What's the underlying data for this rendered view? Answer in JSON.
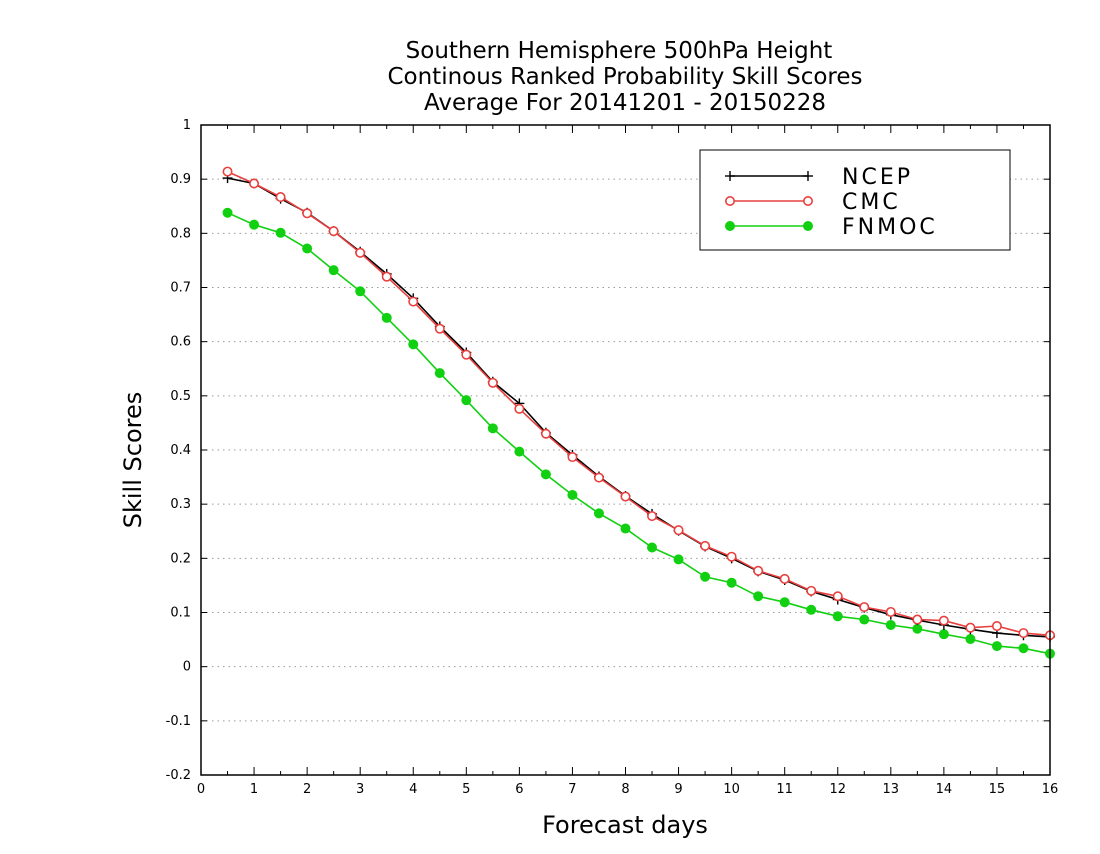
{
  "chart_data": {
    "type": "line",
    "title": [
      "Southern Hemisphere 500hPa Height",
      "Continous Ranked Probability Skill Scores",
      "Average For 20141201 - 20150228"
    ],
    "xlabel": "Forecast days",
    "ylabel": "Skill Scores",
    "xlim": [
      0,
      16
    ],
    "ylim": [
      -0.2,
      1
    ],
    "xticks": [
      0,
      1,
      2,
      3,
      4,
      5,
      6,
      7,
      8,
      9,
      10,
      11,
      12,
      13,
      14,
      15,
      16
    ],
    "xtick_labels": [
      "0",
      "1",
      "2",
      "3",
      "4",
      "5",
      "6",
      "7",
      "8",
      "9",
      "10",
      "11",
      "12",
      "13",
      "14",
      "15",
      "16"
    ],
    "yticks": [
      -0.2,
      -0.1,
      0,
      0.1,
      0.2,
      0.3,
      0.4,
      0.5,
      0.6,
      0.7,
      0.8,
      0.9,
      1
    ],
    "ytick_labels": [
      "-0.2",
      "-0.1",
      "0",
      "0.1",
      "0.2",
      "0.3",
      "0.4",
      "0.5",
      "0.6",
      "0.7",
      "0.8",
      "0.9",
      "1"
    ],
    "grid": "horizontal dotted",
    "legend_position": "top-right",
    "x": [
      0.5,
      1,
      1.5,
      2,
      2.5,
      3,
      3.5,
      4,
      4.5,
      5,
      5.5,
      6,
      6.5,
      7,
      7.5,
      8,
      8.5,
      9,
      9.5,
      10,
      10.5,
      11,
      11.5,
      12,
      12.5,
      13,
      13.5,
      14,
      14.5,
      15,
      15.5,
      16
    ],
    "series": [
      {
        "name": "NCEP",
        "color": "#000000",
        "marker": "plus",
        "values": [
          0.902,
          0.892,
          0.864,
          0.838,
          0.804,
          0.766,
          0.725,
          0.68,
          0.628,
          0.58,
          0.526,
          0.486,
          0.432,
          0.391,
          0.351,
          0.315,
          0.282,
          0.251,
          0.222,
          0.2,
          0.176,
          0.16,
          0.139,
          0.124,
          0.109,
          0.096,
          0.086,
          0.077,
          0.069,
          0.062,
          0.058,
          0.055
        ]
      },
      {
        "name": "CMC",
        "color": "#e8403f",
        "marker": "circle-open",
        "values": [
          0.914,
          0.892,
          0.867,
          0.837,
          0.804,
          0.764,
          0.72,
          0.674,
          0.624,
          0.576,
          0.524,
          0.476,
          0.43,
          0.387,
          0.349,
          0.314,
          0.278,
          0.252,
          0.223,
          0.203,
          0.177,
          0.162,
          0.14,
          0.13,
          0.11,
          0.101,
          0.087,
          0.085,
          0.072,
          0.075,
          0.062,
          0.058
        ]
      },
      {
        "name": "FNMOC",
        "color": "#11d011",
        "marker": "circle-filled",
        "values": [
          0.838,
          0.816,
          0.801,
          0.772,
          0.732,
          0.693,
          0.644,
          0.595,
          0.542,
          0.492,
          0.44,
          0.397,
          0.355,
          0.317,
          0.283,
          0.255,
          0.22,
          0.198,
          0.166,
          0.155,
          0.13,
          0.119,
          0.105,
          0.093,
          0.087,
          0.077,
          0.07,
          0.06,
          0.051,
          0.038,
          0.034,
          0.024
        ]
      }
    ]
  }
}
